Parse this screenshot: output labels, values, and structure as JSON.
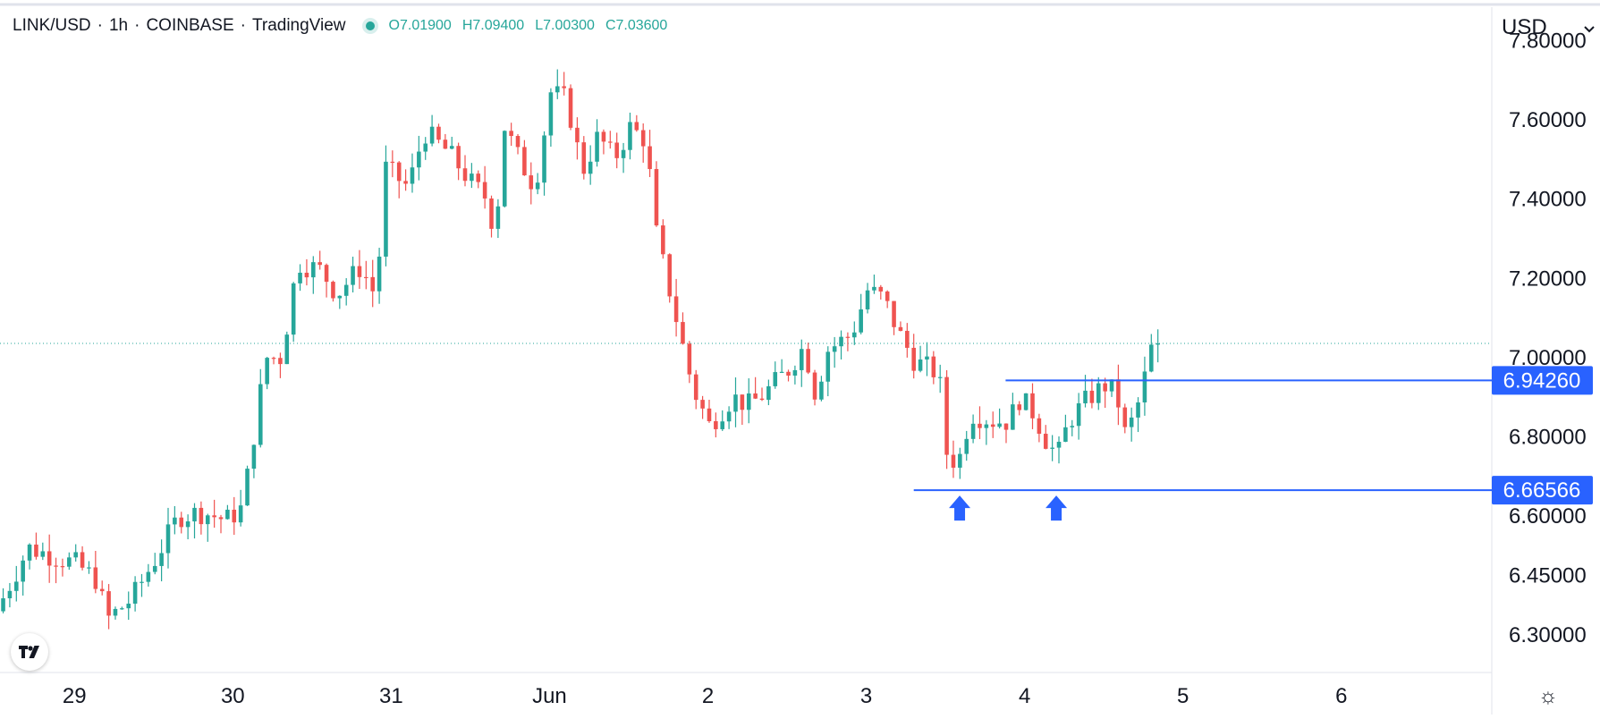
{
  "header": {
    "symbol": "LINK/USD",
    "interval": "1h",
    "exchange": "COINBASE",
    "source": "TradingView",
    "ohlc": {
      "o": "O7.01900",
      "h": "H7.09400",
      "l": "L7.00300",
      "c": "C7.03600"
    }
  },
  "chart_data": {
    "type": "candlestick",
    "title": "",
    "currency": "USD",
    "ylim": [
      6.21,
      7.88
    ],
    "y_ticks": [
      "7.80000",
      "7.60000",
      "7.40000",
      "7.20000",
      "7.00000",
      "6.80000",
      "6.60000",
      "6.45000",
      "6.30000"
    ],
    "y_tick_values": [
      7.8,
      7.6,
      7.4,
      7.2,
      7.0,
      6.8,
      6.6,
      6.45,
      6.3
    ],
    "x_ticks": [
      "29",
      "30",
      "31",
      "Jun",
      "2",
      "3",
      "4",
      "5",
      "6"
    ],
    "x_tick_days": [
      29,
      30,
      31,
      32,
      33,
      34,
      35,
      36,
      37
    ],
    "x_range_days": [
      28.53,
      37.95
    ],
    "up_color": "#26a69a",
    "down_color": "#ef5350",
    "line_color": "#2962ff",
    "current_price": 7.036,
    "support_levels": [
      {
        "value": 6.6657,
        "label": "6.66566",
        "from_day": 34.3
      },
      {
        "value": 6.9426,
        "label": "6.94260",
        "from_day": 34.88
      }
    ],
    "arrows_day": [
      34.59,
      35.2
    ],
    "grid": false,
    "price_path": [
      [
        28.55,
        6.36
      ],
      [
        28.75,
        6.52
      ],
      [
        28.9,
        6.5
      ],
      [
        29.05,
        6.48
      ],
      [
        29.18,
        6.44
      ],
      [
        29.25,
        6.34
      ],
      [
        29.4,
        6.39
      ],
      [
        29.55,
        6.49
      ],
      [
        29.7,
        6.6
      ],
      [
        29.85,
        6.61
      ],
      [
        30.0,
        6.59
      ],
      [
        30.1,
        6.62
      ],
      [
        30.15,
        6.74
      ],
      [
        30.25,
        7.0
      ],
      [
        30.35,
        7.0
      ],
      [
        30.45,
        7.24
      ],
      [
        30.6,
        7.22
      ],
      [
        30.7,
        7.16
      ],
      [
        30.85,
        7.23
      ],
      [
        30.95,
        7.15
      ],
      [
        31.0,
        7.48
      ],
      [
        31.15,
        7.43
      ],
      [
        31.25,
        7.57
      ],
      [
        31.4,
        7.52
      ],
      [
        31.55,
        7.44
      ],
      [
        31.65,
        7.4
      ],
      [
        31.7,
        7.3
      ],
      [
        31.75,
        7.59
      ],
      [
        31.85,
        7.5
      ],
      [
        31.95,
        7.43
      ],
      [
        32.05,
        7.67
      ],
      [
        32.15,
        7.65
      ],
      [
        32.25,
        7.47
      ],
      [
        32.35,
        7.56
      ],
      [
        32.45,
        7.5
      ],
      [
        32.55,
        7.58
      ],
      [
        32.65,
        7.55
      ],
      [
        32.72,
        7.3
      ],
      [
        32.8,
        7.17
      ],
      [
        32.9,
        7.0
      ],
      [
        32.95,
        6.92
      ],
      [
        33.05,
        6.83
      ],
      [
        33.2,
        6.9
      ],
      [
        33.3,
        6.88
      ],
      [
        33.4,
        6.91
      ],
      [
        33.55,
        6.97
      ],
      [
        33.65,
        7.03
      ],
      [
        33.72,
        6.91
      ],
      [
        33.8,
        7.02
      ],
      [
        33.95,
        7.06
      ],
      [
        34.05,
        7.17
      ],
      [
        34.15,
        7.15
      ],
      [
        34.25,
        7.06
      ],
      [
        34.35,
        6.99
      ],
      [
        34.5,
        6.96
      ],
      [
        34.55,
        6.76
      ],
      [
        34.62,
        6.73
      ],
      [
        34.7,
        6.86
      ],
      [
        34.85,
        6.84
      ],
      [
        34.95,
        6.84
      ],
      [
        35.0,
        6.9
      ],
      [
        35.1,
        6.86
      ],
      [
        35.18,
        6.79
      ],
      [
        35.25,
        6.75
      ],
      [
        35.32,
        6.84
      ],
      [
        35.45,
        6.9
      ],
      [
        35.55,
        6.93
      ],
      [
        35.62,
        6.91
      ],
      [
        35.68,
        6.8
      ],
      [
        35.75,
        6.87
      ],
      [
        35.8,
        6.95
      ],
      [
        35.85,
        7.036
      ]
    ]
  }
}
